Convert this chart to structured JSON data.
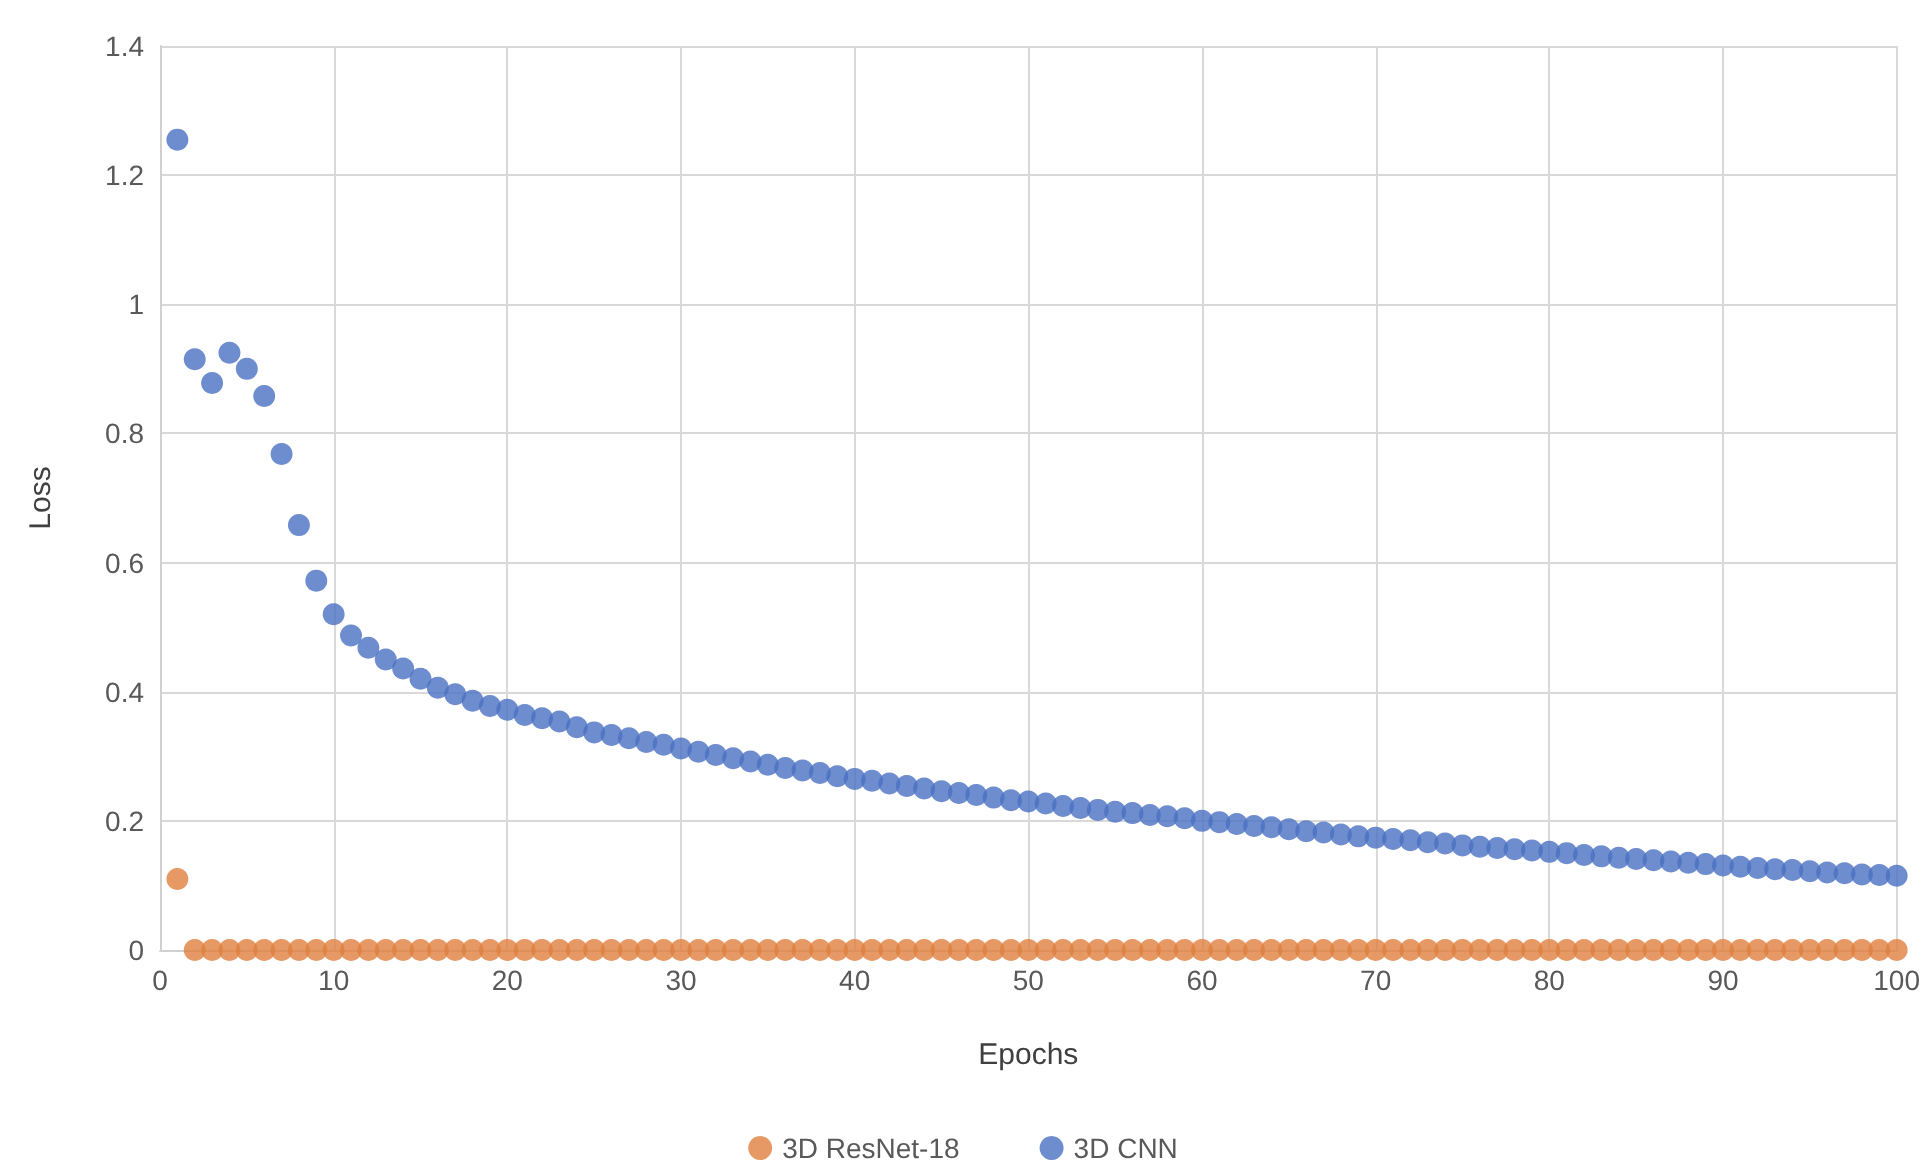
{
  "chart_data": {
    "type": "scatter",
    "xlabel": "Epochs",
    "ylabel": "Loss",
    "x": [
      1,
      2,
      3,
      4,
      5,
      6,
      7,
      8,
      9,
      10,
      11,
      12,
      13,
      14,
      15,
      16,
      17,
      18,
      19,
      20,
      21,
      22,
      23,
      24,
      25,
      26,
      27,
      28,
      29,
      30,
      31,
      32,
      33,
      34,
      35,
      36,
      37,
      38,
      39,
      40,
      41,
      42,
      43,
      44,
      45,
      46,
      47,
      48,
      49,
      50,
      51,
      52,
      53,
      54,
      55,
      56,
      57,
      58,
      59,
      60,
      61,
      62,
      63,
      64,
      65,
      66,
      67,
      68,
      69,
      70,
      71,
      72,
      73,
      74,
      75,
      76,
      77,
      78,
      79,
      80,
      81,
      82,
      83,
      84,
      85,
      86,
      87,
      88,
      89,
      90,
      91,
      92,
      93,
      94,
      95,
      96,
      97,
      98,
      99,
      100
    ],
    "series": [
      {
        "name": "3D ResNet-18",
        "color": "#e07f3e",
        "values": [
          0.11,
          0,
          0,
          0,
          0,
          0,
          0,
          0,
          0,
          0,
          0,
          0,
          0,
          0,
          0,
          0,
          0,
          0,
          0,
          0,
          0,
          0,
          0,
          0,
          0,
          0,
          0,
          0,
          0,
          0,
          0,
          0,
          0,
          0,
          0,
          0,
          0,
          0,
          0,
          0,
          0,
          0,
          0,
          0,
          0,
          0,
          0,
          0,
          0,
          0,
          0,
          0,
          0,
          0,
          0,
          0,
          0,
          0,
          0,
          0,
          0,
          0,
          0,
          0,
          0,
          0,
          0,
          0,
          0,
          0,
          0,
          0,
          0,
          0,
          0,
          0,
          0,
          0,
          0,
          0,
          0,
          0,
          0,
          0,
          0,
          0,
          0,
          0,
          0,
          0,
          0,
          0,
          0,
          0,
          0,
          0,
          0,
          0,
          0,
          0
        ]
      },
      {
        "name": "3D CNN",
        "color": "#4a70c2",
        "values": [
          1.255,
          0.915,
          0.878,
          0.925,
          0.9,
          0.858,
          0.768,
          0.658,
          0.572,
          0.52,
          0.487,
          0.468,
          0.45,
          0.436,
          0.42,
          0.406,
          0.396,
          0.386,
          0.378,
          0.372,
          0.364,
          0.359,
          0.354,
          0.345,
          0.337,
          0.333,
          0.328,
          0.322,
          0.318,
          0.312,
          0.307,
          0.302,
          0.297,
          0.292,
          0.287,
          0.282,
          0.278,
          0.274,
          0.269,
          0.265,
          0.262,
          0.258,
          0.254,
          0.25,
          0.246,
          0.243,
          0.24,
          0.236,
          0.232,
          0.23,
          0.227,
          0.223,
          0.22,
          0.217,
          0.214,
          0.212,
          0.209,
          0.207,
          0.204,
          0.2,
          0.198,
          0.195,
          0.192,
          0.19,
          0.187,
          0.184,
          0.182,
          0.179,
          0.176,
          0.174,
          0.172,
          0.17,
          0.167,
          0.165,
          0.162,
          0.16,
          0.158,
          0.156,
          0.154,
          0.152,
          0.15,
          0.147,
          0.145,
          0.143,
          0.141,
          0.139,
          0.137,
          0.135,
          0.133,
          0.131,
          0.129,
          0.127,
          0.125,
          0.124,
          0.122,
          0.12,
          0.119,
          0.117,
          0.116,
          0.115
        ]
      }
    ],
    "xlim": [
      0,
      100
    ],
    "xticks": [
      0,
      10,
      20,
      30,
      40,
      50,
      60,
      70,
      80,
      90,
      100
    ],
    "ylim": [
      0,
      1.4
    ],
    "yticks": [
      0,
      0.2,
      0.4,
      0.6,
      0.8,
      1,
      1.2,
      1.4
    ],
    "grid": true,
    "legend": "bottom",
    "marker": "circle"
  }
}
